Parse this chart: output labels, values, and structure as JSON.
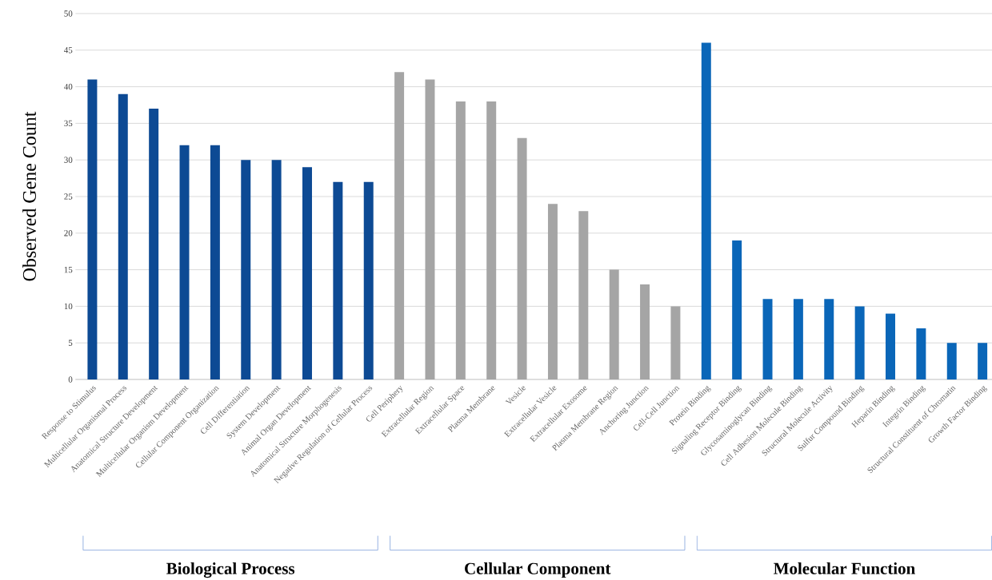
{
  "chart_data": {
    "type": "bar",
    "ylabel": "Observed Gene Count",
    "categories": [
      "Response to Stimulus",
      "Multicellular Organismal Process",
      "Anatomical Structure Development",
      "Multicellular Organism Development",
      "Cellular Component Organization",
      "Cell Differentiation",
      "System Development",
      "Animal Organ Development",
      "Anatomical Structure Morphogenesis",
      "Negative Regulation of Cellular Process",
      "Cell Periphery",
      "Extracellular Region",
      "Extracellular Space",
      "Plasma Membrane",
      "Vesicle",
      "Extracellular Vesicle",
      "Extracellular Exosome",
      "Plasma Membrane Region",
      "Anchoring Junction",
      "Cell-Cell Junction",
      "Protein Binding",
      "Signaling Receptor Binding",
      "Glycosaminoglycan Binding",
      "Cell Adhesion Molecule Binding",
      "Structural Molecule Activity",
      "Sulfur Compound Binding",
      "Heparin Binding",
      "Integrin Binding",
      "Structural Constituent of Chromatin",
      "Growth Factor Binding"
    ],
    "values": [
      41,
      39,
      37,
      32,
      32,
      30,
      30,
      29,
      27,
      27,
      42,
      41,
      38,
      38,
      33,
      24,
      23,
      15,
      13,
      10,
      46,
      19,
      11,
      11,
      11,
      10,
      9,
      7,
      5,
      5
    ],
    "colors": [
      "#0d4a94",
      "#0d4a94",
      "#0d4a94",
      "#0d4a94",
      "#0d4a94",
      "#0d4a94",
      "#0d4a94",
      "#0d4a94",
      "#0d4a94",
      "#0d4a94",
      "#a5a5a5",
      "#a5a5a5",
      "#a5a5a5",
      "#a5a5a5",
      "#a5a5a5",
      "#a5a5a5",
      "#a5a5a5",
      "#a5a5a5",
      "#a5a5a5",
      "#a5a5a5",
      "#0a66b8",
      "#0a66b8",
      "#0a66b8",
      "#0a66b8",
      "#0a66b8",
      "#0a66b8",
      "#0a66b8",
      "#0a66b8",
      "#0a66b8",
      "#0a66b8"
    ],
    "annotations": [
      "Biological Process",
      "Cellular Component",
      "Molecular Function"
    ],
    "ylim": [
      0,
      50
    ],
    "yticks": [
      0,
      5,
      10,
      15,
      20,
      25,
      30,
      35,
      40,
      45,
      50
    ],
    "grid": "y"
  }
}
